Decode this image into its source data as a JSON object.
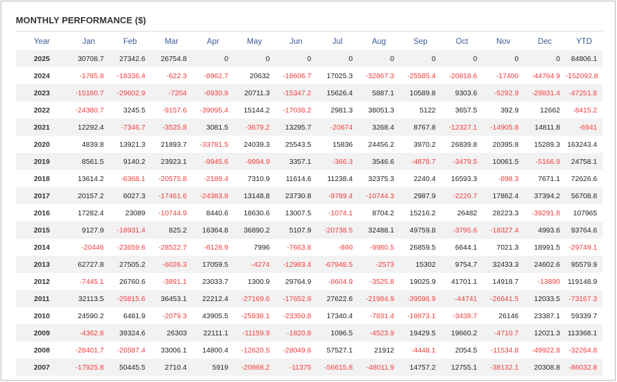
{
  "title": "MONTHLY PERFORMANCE ($)",
  "colors": {
    "header_text": "#3a5a99",
    "negative": "#f03c3c",
    "positive": "#222222",
    "stripe": "#f2f2f2"
  },
  "chart_data": {
    "type": "table",
    "columns": [
      "Year",
      "Jan",
      "Feb",
      "Mar",
      "Apr",
      "May",
      "Jun",
      "Jul",
      "Aug",
      "Sep",
      "Oct",
      "Nov",
      "Dec",
      "YTD"
    ],
    "rows": [
      [
        "2025",
        "30708.7",
        "27342.6",
        "26754.8",
        "0",
        "0",
        "0",
        "0",
        "0",
        "0",
        "0",
        "0",
        "0",
        "84806.1"
      ],
      [
        "2024",
        "-1785.8",
        "-18336.4",
        "-622.3",
        "-8962.7",
        "20632",
        "-18606.7",
        "17025.3",
        "-32867.3",
        "-25585.4",
        "-20818.6",
        "-17400",
        "-44764.9",
        "-152092.8"
      ],
      [
        "2023",
        "-15160.7",
        "-29602.9",
        "-7204",
        "-6930.9",
        "20711.3",
        "-15347.2",
        "15626.4",
        "5887.1",
        "10589.8",
        "9303.6",
        "-5292.9",
        "-29831.4",
        "-47251.8"
      ],
      [
        "2022",
        "-24380.7",
        "3245.5",
        "-9157.6",
        "-39095.4",
        "15144.2",
        "-17038.2",
        "2981.3",
        "38051.3",
        "5122",
        "3657.5",
        "392.9",
        "12662",
        "-8415.2"
      ],
      [
        "2021",
        "12292.4",
        "-7346.7",
        "-3525.8",
        "3081.5",
        "-3679.2",
        "13295.7",
        "-20674",
        "3268.4",
        "8767.8",
        "-12327.1",
        "-14905.8",
        "14811.8",
        "-6941"
      ],
      [
        "2020",
        "4839.8",
        "13921.3",
        "21893.7",
        "-33781.5",
        "24039.3",
        "25543.5",
        "15836",
        "24456.2",
        "3970.2",
        "26839.8",
        "20395.8",
        "15289.3",
        "163243.4"
      ],
      [
        "2019",
        "8561.5",
        "9140.2",
        "23923.1",
        "-9945.6",
        "-9994.9",
        "3357.1",
        "-366.3",
        "3546.6",
        "-4878.7",
        "-3479.5",
        "10061.5",
        "-5166.9",
        "24758.1"
      ],
      [
        "2018",
        "13614.2",
        "-6368.1",
        "-20575.8",
        "-2189.4",
        "7310.9",
        "11614.6",
        "11238.4",
        "32375.3",
        "2240.4",
        "16593.3",
        "-898.3",
        "7671.1",
        "72626.6"
      ],
      [
        "2017",
        "20157.2",
        "6027.3",
        "-17461.6",
        "-24383.8",
        "13148.8",
        "23730.8",
        "-9789.4",
        "-10744.3",
        "2987.9",
        "-2220.7",
        "17862.4",
        "37394.2",
        "56708.8"
      ],
      [
        "2016",
        "17282.4",
        "23089",
        "-10744.9",
        "8440.6",
        "18630.6",
        "13007.5",
        "-1074.1",
        "8704.2",
        "15216.2",
        "26482",
        "28223.3",
        "-39291.8",
        "107965"
      ],
      [
        "2015",
        "9127.9",
        "-18931.4",
        "825.2",
        "16364.8",
        "36890.2",
        "5107.9",
        "-20738.5",
        "32488.1",
        "49759.8",
        "-3795.6",
        "-18327.4",
        "4993.6",
        "93764.6"
      ],
      [
        "2014",
        "-20446",
        "-23659.6",
        "-28522.7",
        "-6128.9",
        "7996",
        "-7663.8",
        "-860",
        "-9980.5",
        "26859.5",
        "6644.1",
        "7021.3",
        "18991.5",
        "-29749.1"
      ],
      [
        "2013",
        "62727.8",
        "27505.2",
        "-6026.3",
        "17059.5",
        "-4274",
        "-12983.4",
        "-67948.5",
        "-2573",
        "15302",
        "9754.7",
        "32433.3",
        "24602.6",
        "95579.9"
      ],
      [
        "2012",
        "-7445.1",
        "26760.6",
        "-3891.1",
        "23033.7",
        "1300.9",
        "29764.9",
        "-8604.9",
        "-3525.8",
        "19025.9",
        "41701.1",
        "14918.7",
        "-13890",
        "119148.9"
      ],
      [
        "2011",
        "32113.5",
        "-25815.6",
        "36453.1",
        "22212.4",
        "-27169.6",
        "-17652.9",
        "27622.6",
        "-21984.9",
        "-39596.9",
        "-44741",
        "-26641.5",
        "12033.5",
        "-73167.3"
      ],
      [
        "2010",
        "24590.2",
        "6481.9",
        "-2079.3",
        "43905.5",
        "-25938.1",
        "-23350.8",
        "17340.4",
        "-7831.4",
        "-19873.1",
        "-3438.7",
        "26146",
        "23387.1",
        "59339.7"
      ],
      [
        "2009",
        "-4362.8",
        "39324.6",
        "26303",
        "22111.1",
        "-11159.9",
        "-1820.8",
        "1096.5",
        "-4523.9",
        "19429.5",
        "19660.2",
        "-4710.7",
        "12021.3",
        "113368.1"
      ],
      [
        "2008",
        "-28401.7",
        "-26587.4",
        "33006.1",
        "14800.4",
        "-12620.5",
        "-28049.6",
        "57527.1",
        "21912",
        "-4448.1",
        "2054.5",
        "-11534.8",
        "-49922.8",
        "-32264.8"
      ],
      [
        "2007",
        "-17925.8",
        "50445.5",
        "2710.4",
        "5919",
        "-20868.2",
        "-11375",
        "-56615.8",
        "-48011.9",
        "14757.2",
        "12755.1",
        "-38132.1",
        "20308.8",
        "-86032.8"
      ]
    ]
  }
}
